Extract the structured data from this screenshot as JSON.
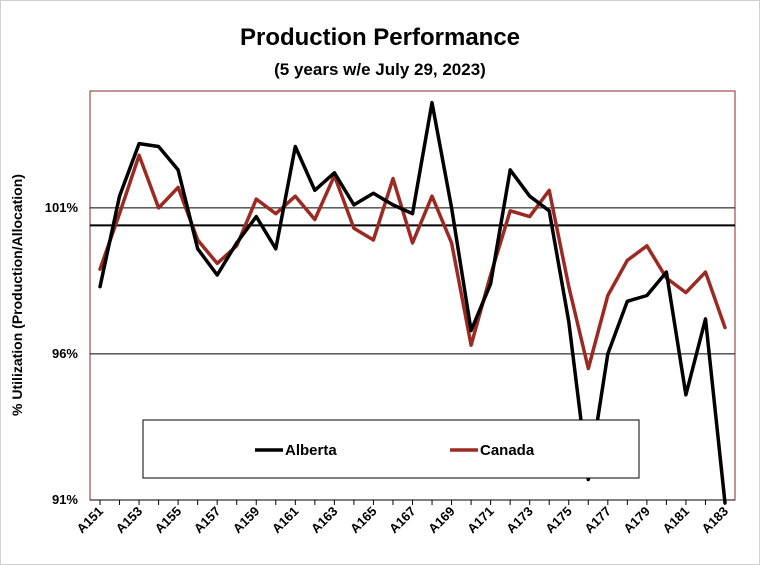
{
  "chart_data": {
    "type": "line",
    "title": "Production Performance",
    "subtitle": "(5 years w/e July 29, 2023)",
    "ylabel": "% Utilization (Production/Allocation)",
    "xlabel": "",
    "ylim": [
      91,
      105
    ],
    "yticks": [
      91,
      96,
      101
    ],
    "ytick_labels": [
      "91%",
      "96%",
      "101%"
    ],
    "reference_line": 100.4,
    "x": [
      "A151",
      "A152",
      "A153",
      "A154",
      "A155",
      "A156",
      "A157",
      "A158",
      "A159",
      "A160",
      "A161",
      "A162",
      "A163",
      "A164",
      "A165",
      "A166",
      "A167",
      "A168",
      "A169",
      "A170",
      "A171",
      "A172",
      "A173",
      "A174",
      "A175",
      "A176",
      "A177",
      "A178",
      "A179",
      "A180",
      "A181",
      "A182",
      "A183"
    ],
    "xtick_labels": [
      "A151",
      "A153",
      "A155",
      "A157",
      "A159",
      "A161",
      "A163",
      "A165",
      "A167",
      "A169",
      "A171",
      "A173",
      "A175",
      "A177",
      "A179",
      "A181",
      "A183"
    ],
    "legend": "bottom-center",
    "series": [
      {
        "name": "Alberta",
        "color": "#000000",
        "values": [
          98.3,
          101.4,
          103.2,
          103.1,
          102.3,
          99.6,
          98.7,
          99.8,
          100.7,
          99.6,
          103.1,
          101.6,
          102.2,
          101.1,
          101.5,
          101.1,
          100.8,
          104.6,
          101.0,
          96.8,
          98.4,
          102.3,
          101.4,
          100.9,
          97.1,
          91.7,
          96.0,
          97.8,
          98.0,
          98.8,
          94.6,
          97.2,
          90.9
        ]
      },
      {
        "name": "Canada",
        "color": "#9b2a22",
        "values": [
          98.9,
          100.8,
          102.8,
          101.0,
          101.7,
          99.9,
          99.1,
          99.7,
          101.3,
          100.8,
          101.4,
          100.6,
          102.1,
          100.3,
          99.9,
          102.0,
          99.8,
          101.4,
          99.8,
          96.3,
          98.7,
          100.9,
          100.7,
          101.6,
          98.3,
          95.5,
          98.0,
          99.2,
          99.7,
          98.6,
          98.1,
          98.8,
          96.9
        ]
      }
    ]
  }
}
